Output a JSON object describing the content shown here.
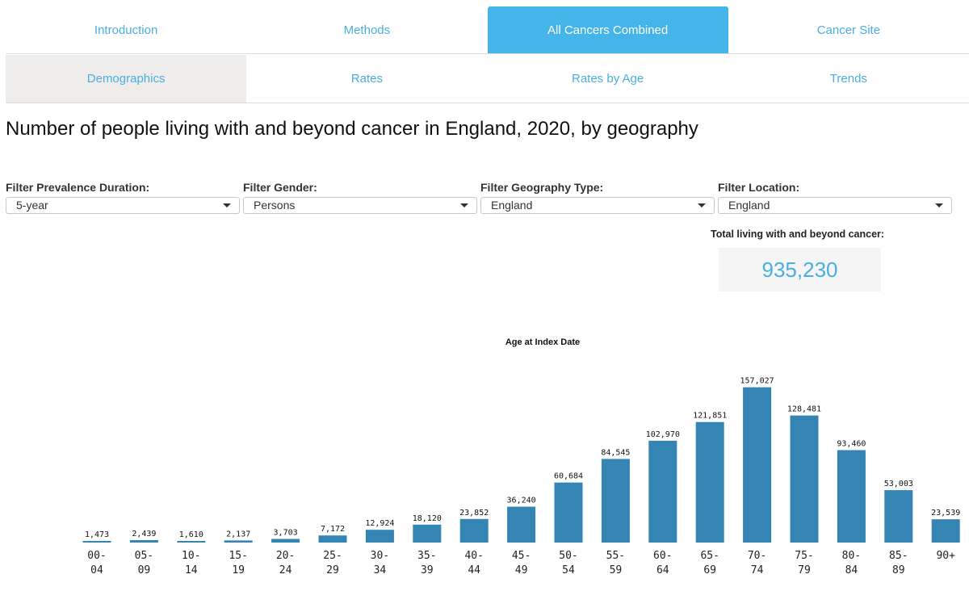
{
  "main_tabs": [
    {
      "label": "Introduction"
    },
    {
      "label": "Methods"
    },
    {
      "label": "All Cancers Combined"
    },
    {
      "label": "Cancer Site"
    }
  ],
  "sub_tabs": [
    {
      "label": "Demographics"
    },
    {
      "label": "Rates"
    },
    {
      "label": "Rates by Age"
    },
    {
      "label": "Trends"
    }
  ],
  "page_title": "Number of people living with and beyond cancer in England, 2020, by geography",
  "filters": [
    {
      "label": "Filter Prevalence Duration:",
      "value": "5-year"
    },
    {
      "label": "Filter Gender:",
      "value": "Persons"
    },
    {
      "label": "Filter Geography Type:",
      "value": "England"
    },
    {
      "label": "Filter Location:",
      "value": "England"
    }
  ],
  "total": {
    "label": "Total living with and beyond cancer:",
    "value": "935,230"
  },
  "colors": {
    "accent": "#45b4e8",
    "bar": "#3485b3",
    "link": "#4aaedf"
  },
  "chart_data": {
    "type": "bar",
    "title": "Age at Index Date",
    "categories": [
      "00-04",
      "05-09",
      "10-14",
      "15-19",
      "20-24",
      "25-29",
      "30-34",
      "35-39",
      "40-44",
      "45-49",
      "50-54",
      "55-59",
      "60-64",
      "65-69",
      "70-74",
      "75-79",
      "80-84",
      "85-89",
      "90+"
    ],
    "values": [
      1473,
      2439,
      1610,
      2137,
      3703,
      7172,
      12924,
      18120,
      23852,
      36240,
      60684,
      84545,
      102970,
      121851,
      157027,
      128481,
      93460,
      53003,
      23539
    ],
    "value_labels": [
      "1,473",
      "2,439",
      "1,610",
      "2,137",
      "3,703",
      "7,172",
      "12,924",
      "18,120",
      "23,852",
      "36,240",
      "60,684",
      "84,545",
      "102,970",
      "121,851",
      "157,027",
      "128,481",
      "93,460",
      "53,003",
      "23,539"
    ],
    "ylim": [
      0,
      160000
    ]
  }
}
